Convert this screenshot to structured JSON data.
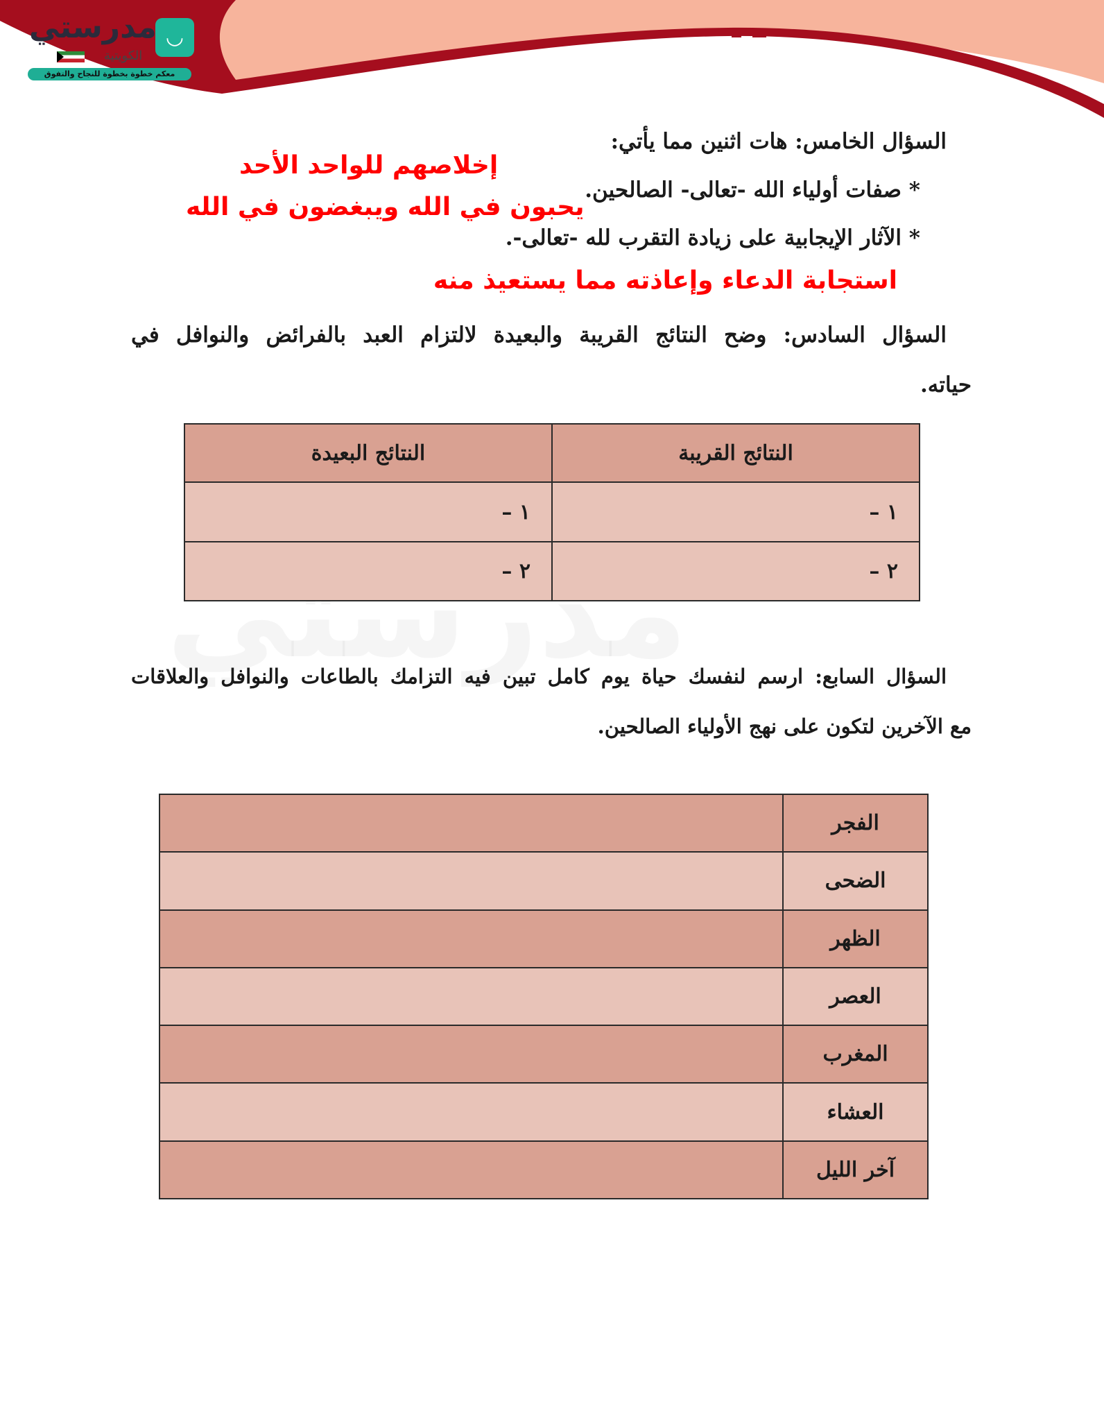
{
  "logo": {
    "name": "مدرستي",
    "subtitle": "الكويتية",
    "tagline": "معكم خطوة بخطوة للنجاح والتفوق"
  },
  "colors": {
    "banner_red": "#a50e1e",
    "banner_peach": "#f7b49c",
    "answer_red": "#ff0000",
    "row_dark": "#d9a192",
    "row_light": "#e8c3b8"
  },
  "q5": {
    "title": "السؤال الخامس: هات اثنين مما يأتي:",
    "bullet1": "* صفات أولياء الله -تعالى- الصالحين.",
    "bullet2": "* الآثار الإيجابية على زيادة التقرب لله -تعالى-.",
    "answer1a": "إخلاصهم للواحد الأحد",
    "answer1b": "يحبون في الله ويبغضون في الله",
    "answer2": "استجابة الدعاء وإعاذته مما يستعيذ منه"
  },
  "q6": {
    "title_line1": "السؤال السادس: وضح النتائج القريبة والبعيدة لالتزام العبد بالفرائض والنوافل في",
    "title_line2": "حياته.",
    "table": {
      "headers": [
        "النتائج القريبة",
        "النتائج البعيدة"
      ],
      "rows": [
        [
          "١ –",
          "١ –"
        ],
        [
          "٢ –",
          "٢ –"
        ]
      ]
    }
  },
  "q7": {
    "title_line1": "السؤال السابع: ارسم لنفسك حياة يوم كامل تبين فيه التزامك بالطاعات والنوافل والعلاقات",
    "title_line2": "مع الآخرين لتكون على نهج الأولياء الصالحين.",
    "times": [
      "الفجر",
      "الضحى",
      "الظهر",
      "العصر",
      "المغرب",
      "العشاء",
      "آخر الليل"
    ]
  }
}
